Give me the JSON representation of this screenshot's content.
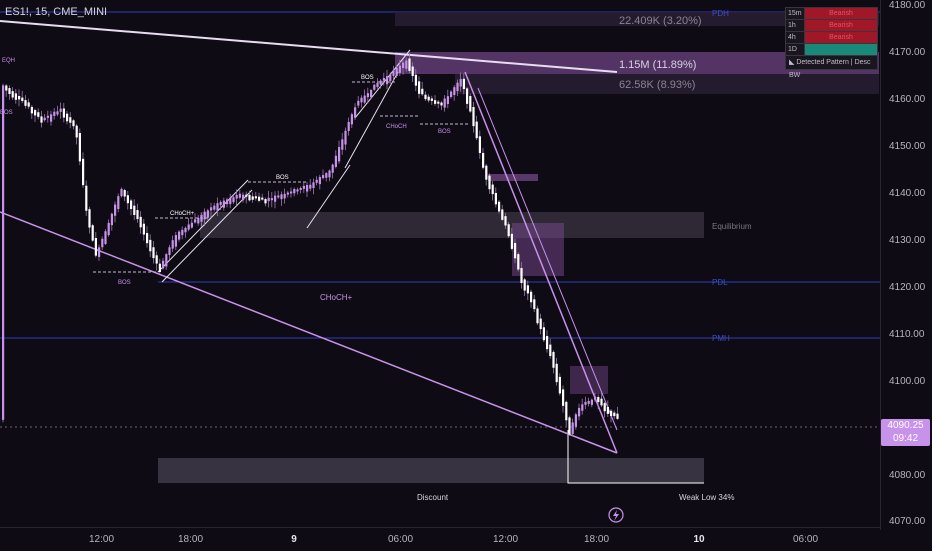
{
  "symbol": "ES1!, 15, CME_MINI",
  "price_ticks": [
    "4180.00",
    "4170.00",
    "4160.00",
    "4150.00",
    "4140.00",
    "4130.00",
    "4120.00",
    "4110.00",
    "4100.00",
    "4090.00",
    "4080.00",
    "4070.00"
  ],
  "time_ticks": [
    "12:00",
    "18:00",
    "9",
    "06:00",
    "12:00",
    "18:00",
    "10",
    "06:00"
  ],
  "current_price": {
    "price": "4090.25",
    "countdown": "09:42"
  },
  "levels": {
    "pdh": "PDH",
    "pdl": "PDL",
    "pmh": "PMH",
    "equilibrium": "Equilibrium",
    "discount": "Discount",
    "weak_low": "Weak Low 34%"
  },
  "volume_labels": {
    "top": "22.409K (3.20%)",
    "middle": "1.15M (11.89%)",
    "bottom": "62.58K (8.93%)"
  },
  "structure_labels": {
    "bos": "BOS",
    "choch": "CHoCH",
    "choch_plus": "CHoCH+",
    "eqh": "EQH"
  },
  "timeframes": [
    {
      "tf": "15m",
      "value": "Bearish"
    },
    {
      "tf": "1h",
      "value": "Bearish"
    },
    {
      "tf": "4h",
      "value": "Bearish"
    },
    {
      "tf": "1D",
      "value": ""
    }
  ],
  "pattern_label": "Detected Pattern | Desc BW",
  "colors": {
    "bull": "#c792ea",
    "bear": "#8a5aa0",
    "wick": "#9c7ab0",
    "line": "#2d3ec0",
    "ray": "#d9a8e6",
    "accent": "#c792ea"
  }
}
